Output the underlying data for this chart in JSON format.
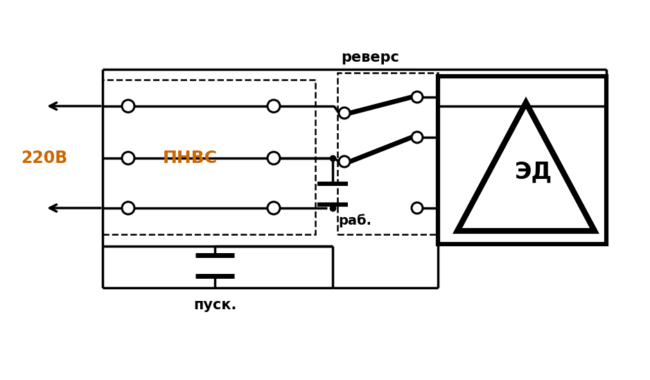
{
  "background_color": "#ffffff",
  "line_color": "#000000",
  "orange_text_color": "#cc6600",
  "label_220v": "220В",
  "label_pnvs": "ПНВС",
  "label_revers": "реверс",
  "label_rab": "раб.",
  "label_pusk": "пуск.",
  "label_ed": "ЭД",
  "figsize": [
    9.38,
    5.48
  ],
  "dpi": 100,
  "lw": 2.5,
  "lw_thick": 5.0,
  "lw_dashed": 1.8,
  "circle_r": 9
}
